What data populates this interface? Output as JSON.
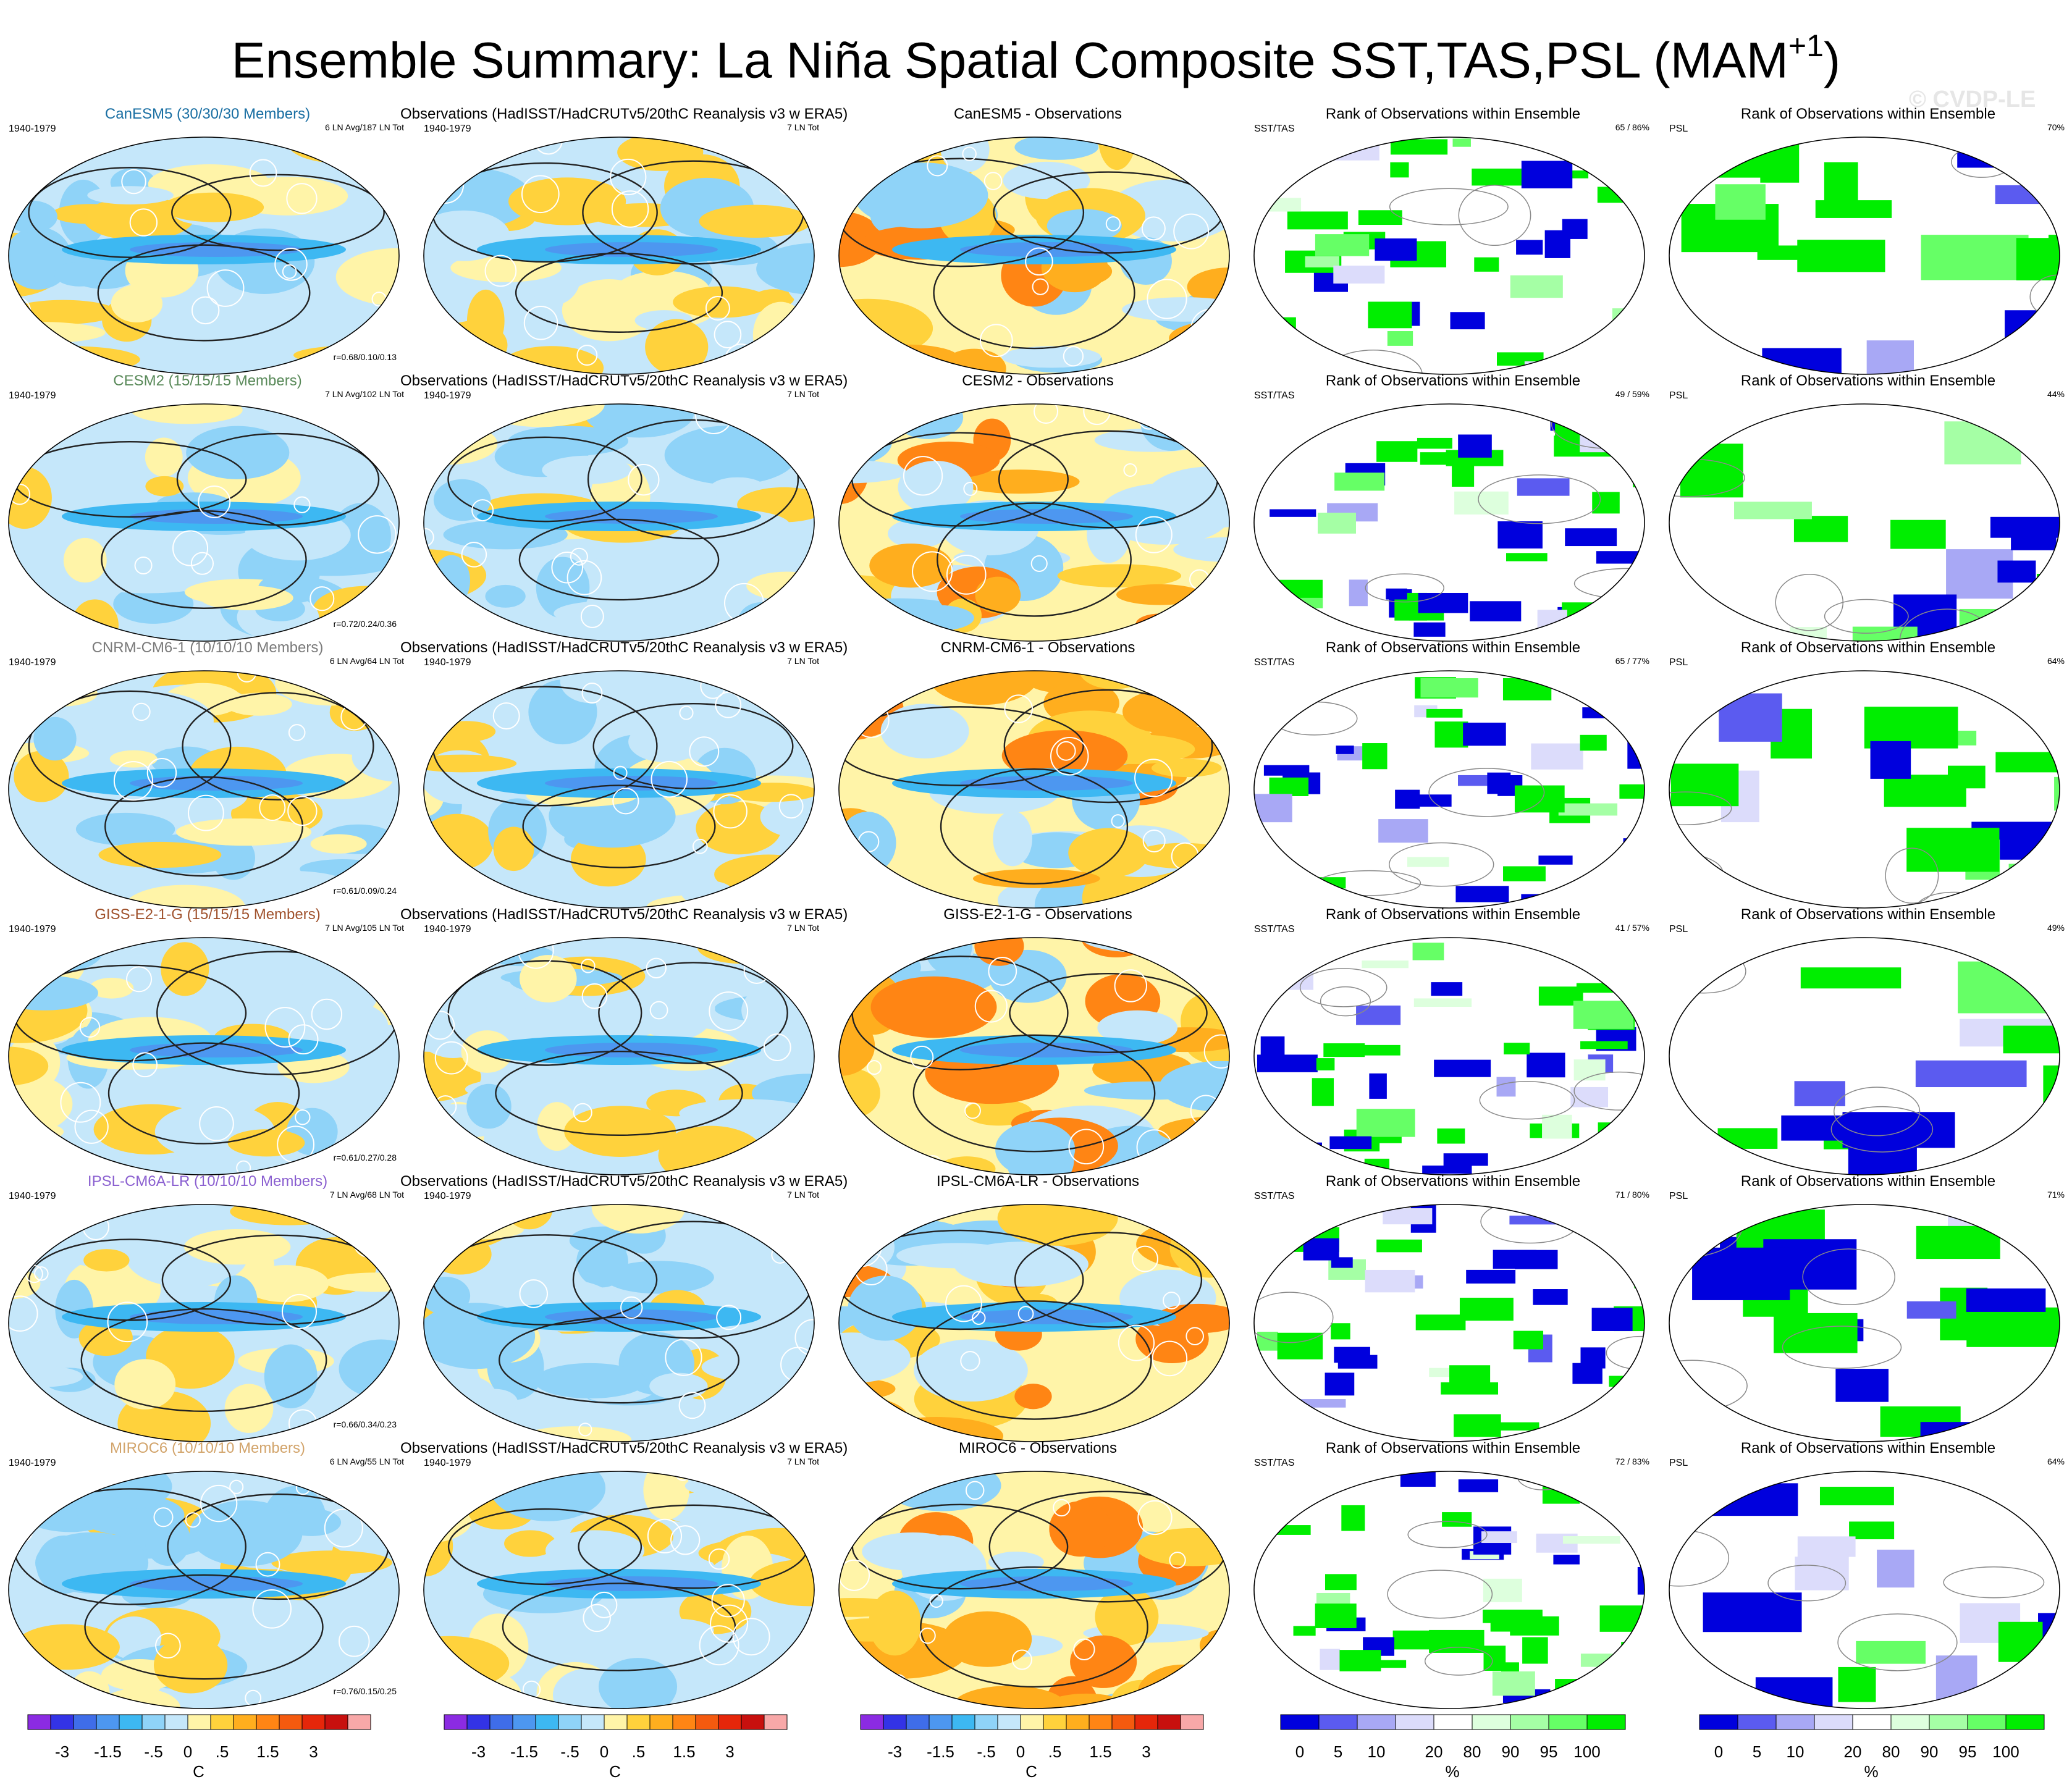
{
  "title": {
    "text": "Ensemble Summary: La Niña Spatial Composite SST,TAS,PSL (MAM",
    "sup": "+1",
    "close": ")"
  },
  "watermark": "© CVDP-LE",
  "obs_title": "Observations (HadISST/HadCRUTv5/20thC Reanalysis v3 w ERA5)",
  "rank_title": "Rank of Observations within Ensemble",
  "period": "1940-1979",
  "obs_count": "7 LN Tot",
  "rank_label_sst": "SST/TAS",
  "rank_label_psl": "PSL",
  "colors": {
    "diverging": [
      "#8b2be2",
      "#3333e6",
      "#3f6de9",
      "#4d97f0",
      "#3db8f2",
      "#8fd3f8",
      "#c5e7fa",
      "#fff4a8",
      "#ffd23c",
      "#ffae1e",
      "#ff8514",
      "#f45a0f",
      "#e6260a",
      "#c8100e",
      "#f8a8a8"
    ],
    "rank": [
      "#0000dd",
      "#5b5bf0",
      "#a8a8f5",
      "#dcdcfb",
      "#ffffff",
      "#ddffdd",
      "#a5ffa5",
      "#66ff66",
      "#00ee00"
    ],
    "model_colors": [
      "#1a6fa3",
      "#5a8a5a",
      "#7a7a7a",
      "#a0522d",
      "#8a5fd0",
      "#d2a46b"
    ]
  },
  "rows": [
    {
      "model_title": "CanESM5 (30/30/30 Members)",
      "ln_info": "6 LN Avg/187 LN Tot",
      "corr": "r=0.68/0.10/0.13",
      "diff_title": "CanESM5 - Observations",
      "rank_sst_pct": "65 /  86%",
      "rank_psl_pct": "70%"
    },
    {
      "model_title": "CESM2 (15/15/15 Members)",
      "ln_info": "7 LN Avg/102 LN Tot",
      "corr": "r=0.72/0.24/0.36",
      "diff_title": "CESM2 - Observations",
      "rank_sst_pct": "49 /  59%",
      "rank_psl_pct": "44%"
    },
    {
      "model_title": "CNRM-CM6-1 (10/10/10 Members)",
      "ln_info": "6 LN Avg/64 LN Tot",
      "corr": "r=0.61/0.09/0.24",
      "diff_title": "CNRM-CM6-1 - Observations",
      "rank_sst_pct": "65 /  77%",
      "rank_psl_pct": "64%"
    },
    {
      "model_title": "GISS-E2-1-G (15/15/15 Members)",
      "ln_info": "7 LN Avg/105 LN Tot",
      "corr": "r=0.61/0.27/0.28",
      "diff_title": "GISS-E2-1-G - Observations",
      "rank_sst_pct": "41 /  57%",
      "rank_psl_pct": "49%"
    },
    {
      "model_title": "IPSL-CM6A-LR (10/10/10 Members)",
      "ln_info": "7 LN Avg/68 LN Tot",
      "corr": "r=0.66/0.34/0.23",
      "diff_title": "IPSL-CM6A-LR - Observations",
      "rank_sst_pct": "71 /  80%",
      "rank_psl_pct": "71%"
    },
    {
      "model_title": "MIROC6 (10/10/10 Members)",
      "ln_info": "6 LN Avg/55 LN Tot",
      "corr": "r=0.76/0.15/0.25",
      "diff_title": "MIROC6 - Observations",
      "rank_sst_pct": "72 /  83%",
      "rank_psl_pct": "64%"
    }
  ],
  "colorbars": {
    "temp": {
      "ticks": [
        "-3",
        "-1.5",
        "-.5",
        "0",
        ".5",
        "1.5",
        "3"
      ],
      "unit": "C"
    },
    "rank": {
      "ticks": [
        "0",
        "5",
        "10",
        "20",
        "80",
        "90",
        "95",
        "100"
      ],
      "unit": "%"
    }
  },
  "chart_data": {
    "type": "heatmap",
    "title": "Ensemble Summary: La Niña Spatial Composite SST,TAS,PSL (MAM+1)",
    "panels_per_row": [
      "model composite",
      "observations composite",
      "model - observations",
      "rank SST/TAS",
      "rank PSL"
    ],
    "models": [
      "CanESM5",
      "CESM2",
      "CNRM-CM6-1",
      "GISS-E2-1-G",
      "IPSL-CM6A-LR",
      "MIROC6"
    ],
    "members": [
      30,
      15,
      10,
      15,
      10,
      10
    ],
    "ln_avg": [
      6,
      7,
      6,
      7,
      7,
      6
    ],
    "ln_tot": [
      187,
      102,
      64,
      105,
      68,
      55
    ],
    "obs_ln_tot": 7,
    "pattern_correlations": [
      [
        0.68,
        0.1,
        0.13
      ],
      [
        0.72,
        0.24,
        0.36
      ],
      [
        0.61,
        0.09,
        0.24
      ],
      [
        0.61,
        0.27,
        0.28
      ],
      [
        0.66,
        0.34,
        0.23
      ],
      [
        0.76,
        0.15,
        0.25
      ]
    ],
    "rank_sst_tas_pct": [
      [
        65,
        86
      ],
      [
        49,
        59
      ],
      [
        65,
        77
      ],
      [
        41,
        57
      ],
      [
        71,
        80
      ],
      [
        72,
        83
      ]
    ],
    "rank_psl_pct": [
      70,
      44,
      64,
      49,
      71,
      64
    ],
    "temperature_levels": [
      -3,
      -1.5,
      -0.5,
      0,
      0.5,
      1.5,
      3
    ],
    "temperature_unit": "C",
    "rank_levels": [
      0,
      5,
      10,
      20,
      80,
      90,
      95,
      100
    ],
    "rank_unit": "%"
  }
}
